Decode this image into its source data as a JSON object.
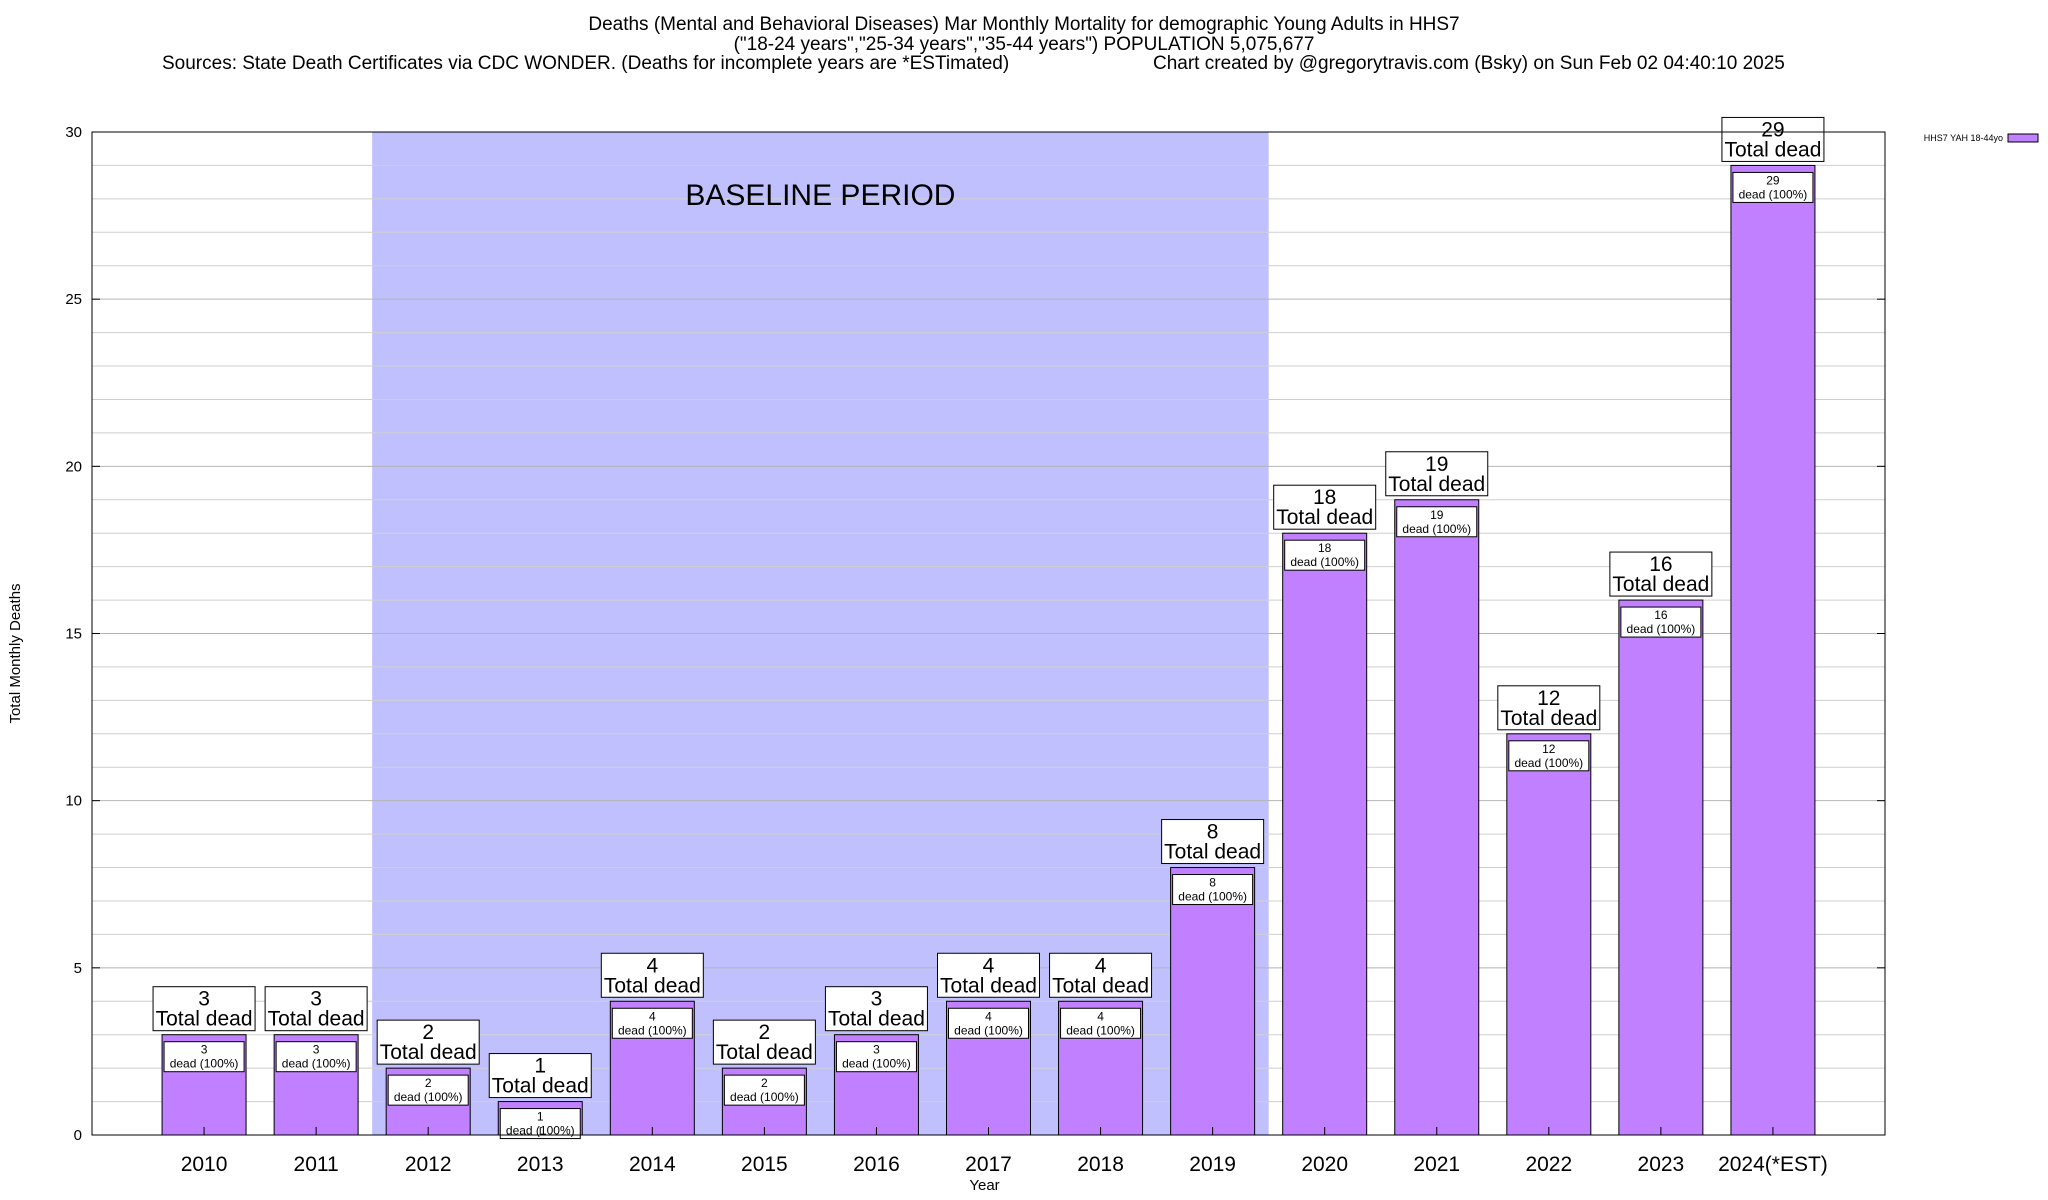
{
  "header": {
    "title_line1": "Deaths (Mental and Behavioral Diseases) Mar Monthly Mortality for demographic Young Adults in HHS7",
    "title_line2": "(\"18-24 years\",\"25-34 years\",\"35-44 years\") POPULATION 5,075,677",
    "sources": "Sources: State Death Certificates via CDC WONDER. (Deaths for incomplete years are *ESTimated)",
    "credit": "Chart created by @gregorytravis.com (Bsky) on Sun Feb 02 04:40:10 2025"
  },
  "chart_data": {
    "type": "bar",
    "xlabel": "Year",
    "ylabel": "Total Monthly Deaths",
    "ylim": [
      0,
      30
    ],
    "yticks": [
      0,
      5,
      10,
      15,
      20,
      25,
      30
    ],
    "grid": true,
    "legend_position": "top-right",
    "categories": [
      "2010",
      "2011",
      "2012",
      "2013",
      "2014",
      "2015",
      "2016",
      "2017",
      "2018",
      "2019",
      "2020",
      "2021",
      "2022",
      "2023",
      "2024(*EST)"
    ],
    "series": [
      {
        "name": "HHS7 YAH 18-44yo",
        "color": "#c080ff",
        "values": [
          3,
          3,
          2,
          1,
          4,
          2,
          3,
          4,
          4,
          8,
          18,
          19,
          12,
          16,
          29
        ]
      }
    ],
    "total_label_suffix": "Total dead",
    "inner_label_suffix": "dead (100%)",
    "annotation": {
      "text": "BASELINE PERIOD",
      "span_categories": [
        "2012",
        "2019"
      ],
      "color": "#c0c0ff"
    }
  }
}
